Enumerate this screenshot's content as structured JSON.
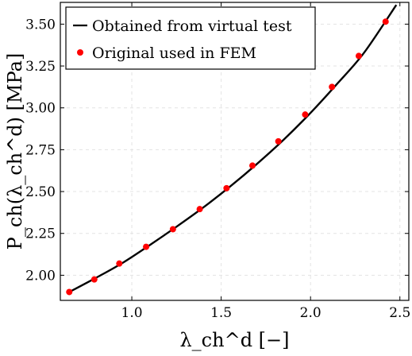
{
  "chart_data": {
    "type": "line",
    "title": "",
    "xlabel": "λ_ch^d [−]",
    "ylabel": "P_ch(λ_ch^d) [MPa]",
    "xlim": [
      0.6,
      2.55
    ],
    "ylim": [
      1.85,
      3.63
    ],
    "grid": true,
    "legend_position": "top-left",
    "x_ticks": [
      1.0,
      1.5,
      2.0,
      2.5
    ],
    "x_tick_labels": [
      "1.0",
      "1.5",
      "2.0",
      "2.5"
    ],
    "y_ticks": [
      2.0,
      2.25,
      2.5,
      2.75,
      3.0,
      3.25,
      3.5
    ],
    "y_tick_labels": [
      "2.00",
      "2.25",
      "2.50",
      "2.75",
      "3.00",
      "3.25",
      "3.50"
    ],
    "series": [
      {
        "name": "Obtained from virtual test",
        "kind": "line",
        "color": "#000000",
        "x": [
          0.65,
          0.8,
          0.95,
          1.1,
          1.25,
          1.4,
          1.55,
          1.7,
          1.85,
          2.0,
          2.15,
          2.3,
          2.48
        ],
        "y": [
          1.9,
          1.985,
          2.075,
          2.18,
          2.29,
          2.405,
          2.53,
          2.665,
          2.81,
          2.97,
          3.145,
          3.33,
          3.615
        ]
      },
      {
        "name": "Original used in FEM",
        "kind": "scatter",
        "color": "#ff0000",
        "x": [
          0.65,
          0.79,
          0.93,
          1.08,
          1.23,
          1.38,
          1.53,
          1.675,
          1.82,
          1.97,
          2.12,
          2.27,
          2.42
        ],
        "y": [
          1.9,
          1.975,
          2.07,
          2.17,
          2.275,
          2.395,
          2.52,
          2.655,
          2.8,
          2.96,
          3.125,
          3.31,
          3.515
        ]
      }
    ]
  }
}
